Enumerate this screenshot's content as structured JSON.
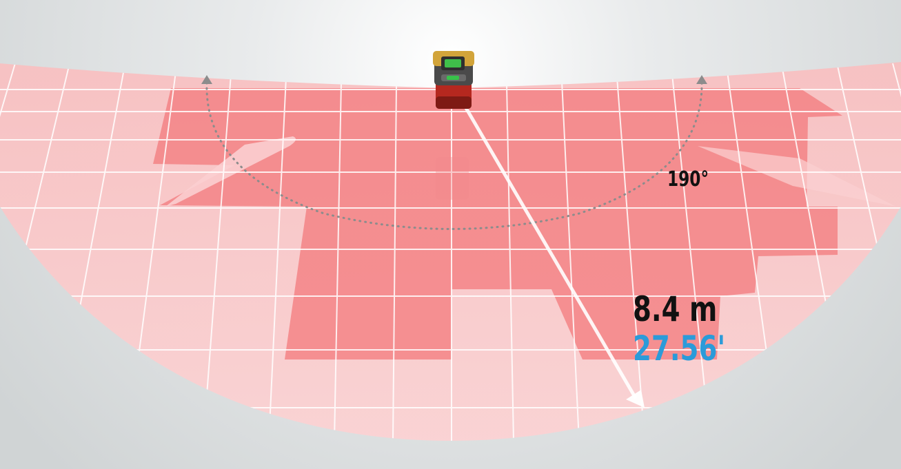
{
  "scan_angle": "190°",
  "range_metric": "8.4 m",
  "range_imperial": "27.56'",
  "colors": {
    "background_top": "#ffffff",
    "background_bottom": "#d3d7d8",
    "field_protective": "#f3797c",
    "field_warning": "#f9c6c7",
    "grid": "#ffffff",
    "label_primary": "#111111",
    "label_accent": "#2b9bd9",
    "arc_dots": "#8c8c8c"
  },
  "icons": {
    "sensor": "laser-scanner-icon",
    "arc_arrows": "arrowhead-icon"
  }
}
